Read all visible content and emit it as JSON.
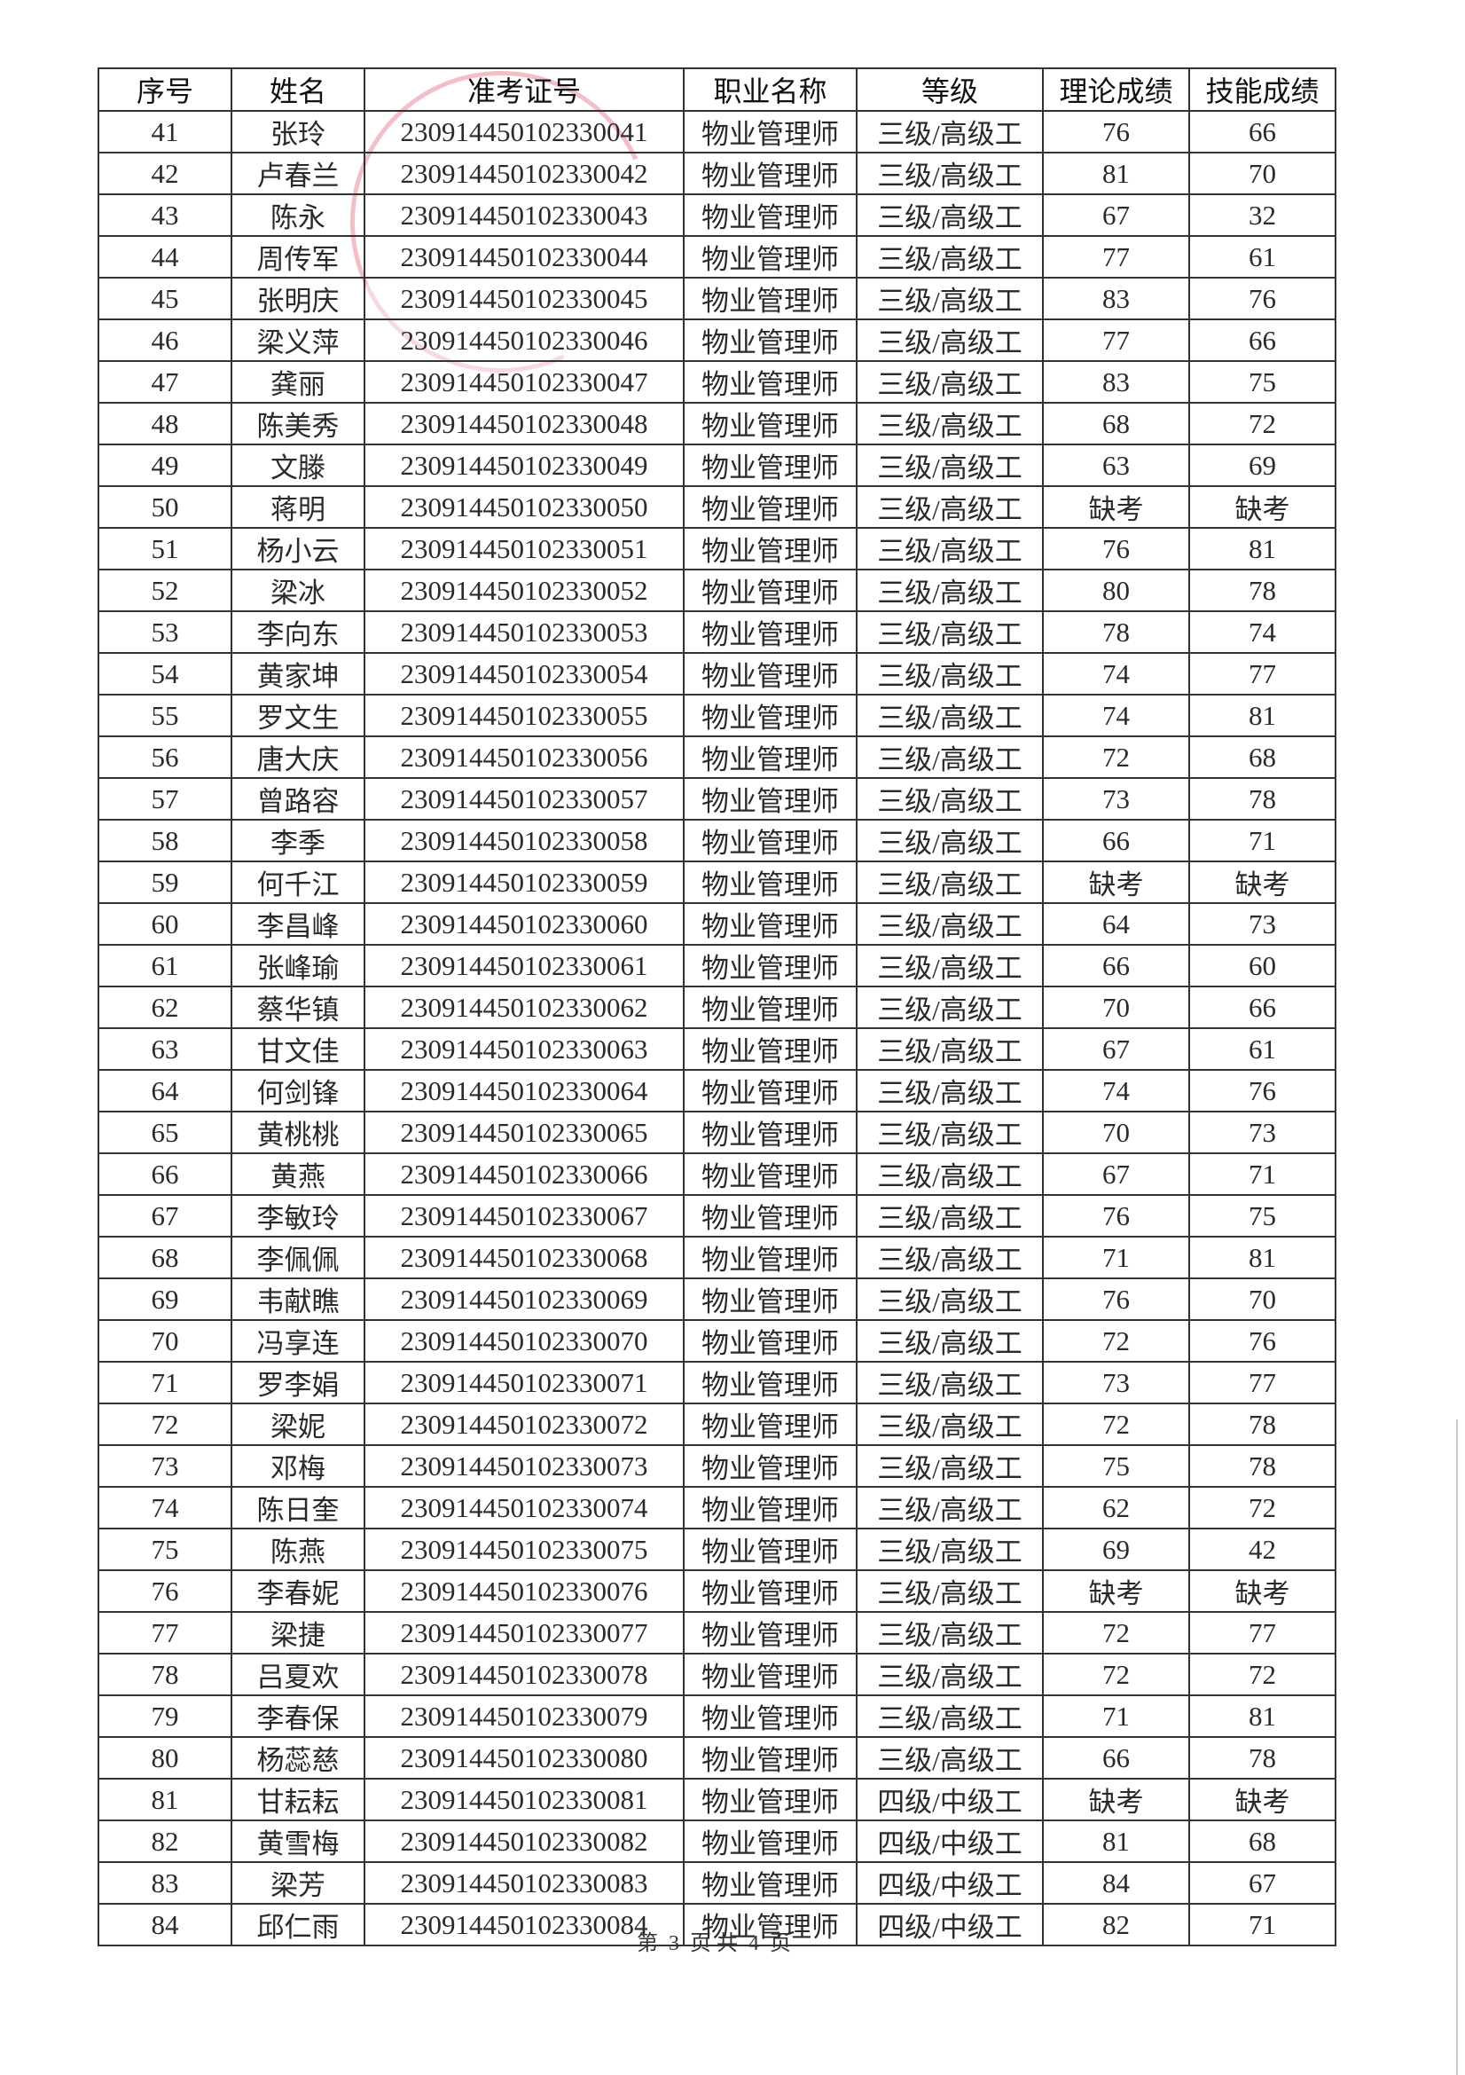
{
  "table": {
    "headers": [
      "序号",
      "姓名",
      "准考证号",
      "职业名称",
      "等级",
      "理论成绩",
      "技能成绩"
    ],
    "rows": [
      [
        "41",
        "张玲",
        "230914450102330041",
        "物业管理师",
        "三级/高级工",
        "76",
        "66"
      ],
      [
        "42",
        "卢春兰",
        "230914450102330042",
        "物业管理师",
        "三级/高级工",
        "81",
        "70"
      ],
      [
        "43",
        "陈永",
        "230914450102330043",
        "物业管理师",
        "三级/高级工",
        "67",
        "32"
      ],
      [
        "44",
        "周传军",
        "230914450102330044",
        "物业管理师",
        "三级/高级工",
        "77",
        "61"
      ],
      [
        "45",
        "张明庆",
        "230914450102330045",
        "物业管理师",
        "三级/高级工",
        "83",
        "76"
      ],
      [
        "46",
        "梁义萍",
        "230914450102330046",
        "物业管理师",
        "三级/高级工",
        "77",
        "66"
      ],
      [
        "47",
        "龚丽",
        "230914450102330047",
        "物业管理师",
        "三级/高级工",
        "83",
        "75"
      ],
      [
        "48",
        "陈美秀",
        "230914450102330048",
        "物业管理师",
        "三级/高级工",
        "68",
        "72"
      ],
      [
        "49",
        "文滕",
        "230914450102330049",
        "物业管理师",
        "三级/高级工",
        "63",
        "69"
      ],
      [
        "50",
        "蒋明",
        "230914450102330050",
        "物业管理师",
        "三级/高级工",
        "缺考",
        "缺考"
      ],
      [
        "51",
        "杨小云",
        "230914450102330051",
        "物业管理师",
        "三级/高级工",
        "76",
        "81"
      ],
      [
        "52",
        "梁冰",
        "230914450102330052",
        "物业管理师",
        "三级/高级工",
        "80",
        "78"
      ],
      [
        "53",
        "李向东",
        "230914450102330053",
        "物业管理师",
        "三级/高级工",
        "78",
        "74"
      ],
      [
        "54",
        "黄家坤",
        "230914450102330054",
        "物业管理师",
        "三级/高级工",
        "74",
        "77"
      ],
      [
        "55",
        "罗文生",
        "230914450102330055",
        "物业管理师",
        "三级/高级工",
        "74",
        "81"
      ],
      [
        "56",
        "唐大庆",
        "230914450102330056",
        "物业管理师",
        "三级/高级工",
        "72",
        "68"
      ],
      [
        "57",
        "曾路容",
        "230914450102330057",
        "物业管理师",
        "三级/高级工",
        "73",
        "78"
      ],
      [
        "58",
        "李季",
        "230914450102330058",
        "物业管理师",
        "三级/高级工",
        "66",
        "71"
      ],
      [
        "59",
        "何千江",
        "230914450102330059",
        "物业管理师",
        "三级/高级工",
        "缺考",
        "缺考"
      ],
      [
        "60",
        "李昌峰",
        "230914450102330060",
        "物业管理师",
        "三级/高级工",
        "64",
        "73"
      ],
      [
        "61",
        "张峰瑜",
        "230914450102330061",
        "物业管理师",
        "三级/高级工",
        "66",
        "60"
      ],
      [
        "62",
        "蔡华镇",
        "230914450102330062",
        "物业管理师",
        "三级/高级工",
        "70",
        "66"
      ],
      [
        "63",
        "甘文佳",
        "230914450102330063",
        "物业管理师",
        "三级/高级工",
        "67",
        "61"
      ],
      [
        "64",
        "何剑锋",
        "230914450102330064",
        "物业管理师",
        "三级/高级工",
        "74",
        "76"
      ],
      [
        "65",
        "黄桃桃",
        "230914450102330065",
        "物业管理师",
        "三级/高级工",
        "70",
        "73"
      ],
      [
        "66",
        "黄燕",
        "230914450102330066",
        "物业管理师",
        "三级/高级工",
        "67",
        "71"
      ],
      [
        "67",
        "李敏玲",
        "230914450102330067",
        "物业管理师",
        "三级/高级工",
        "76",
        "75"
      ],
      [
        "68",
        "李佩佩",
        "230914450102330068",
        "物业管理师",
        "三级/高级工",
        "71",
        "81"
      ],
      [
        "69",
        "韦献瞧",
        "230914450102330069",
        "物业管理师",
        "三级/高级工",
        "76",
        "70"
      ],
      [
        "70",
        "冯享连",
        "230914450102330070",
        "物业管理师",
        "三级/高级工",
        "72",
        "76"
      ],
      [
        "71",
        "罗李娟",
        "230914450102330071",
        "物业管理师",
        "三级/高级工",
        "73",
        "77"
      ],
      [
        "72",
        "梁妮",
        "230914450102330072",
        "物业管理师",
        "三级/高级工",
        "72",
        "78"
      ],
      [
        "73",
        "邓梅",
        "230914450102330073",
        "物业管理师",
        "三级/高级工",
        "75",
        "78"
      ],
      [
        "74",
        "陈日奎",
        "230914450102330074",
        "物业管理师",
        "三级/高级工",
        "62",
        "72"
      ],
      [
        "75",
        "陈燕",
        "230914450102330075",
        "物业管理师",
        "三级/高级工",
        "69",
        "42"
      ],
      [
        "76",
        "李春妮",
        "230914450102330076",
        "物业管理师",
        "三级/高级工",
        "缺考",
        "缺考"
      ],
      [
        "77",
        "梁捷",
        "230914450102330077",
        "物业管理师",
        "三级/高级工",
        "72",
        "77"
      ],
      [
        "78",
        "吕夏欢",
        "230914450102330078",
        "物业管理师",
        "三级/高级工",
        "72",
        "72"
      ],
      [
        "79",
        "李春保",
        "230914450102330079",
        "物业管理师",
        "三级/高级工",
        "71",
        "81"
      ],
      [
        "80",
        "杨蕊慈",
        "230914450102330080",
        "物业管理师",
        "三级/高级工",
        "66",
        "78"
      ],
      [
        "81",
        "甘耘耘",
        "230914450102330081",
        "物业管理师",
        "四级/中级工",
        "缺考",
        "缺考"
      ],
      [
        "82",
        "黄雪梅",
        "230914450102330082",
        "物业管理师",
        "四级/中级工",
        "81",
        "68"
      ],
      [
        "83",
        "梁芳",
        "230914450102330083",
        "物业管理师",
        "四级/中级工",
        "84",
        "67"
      ],
      [
        "84",
        "邱仁雨",
        "230914450102330084",
        "物业管理师",
        "四级/中级工",
        "82",
        "71"
      ]
    ]
  },
  "footer": {
    "prefix": "第",
    "page": "3",
    "mid": "页 共",
    "total": "4",
    "suffix": "页"
  },
  "colors": {
    "stamp": "#dc465a",
    "ink": "#222222"
  }
}
